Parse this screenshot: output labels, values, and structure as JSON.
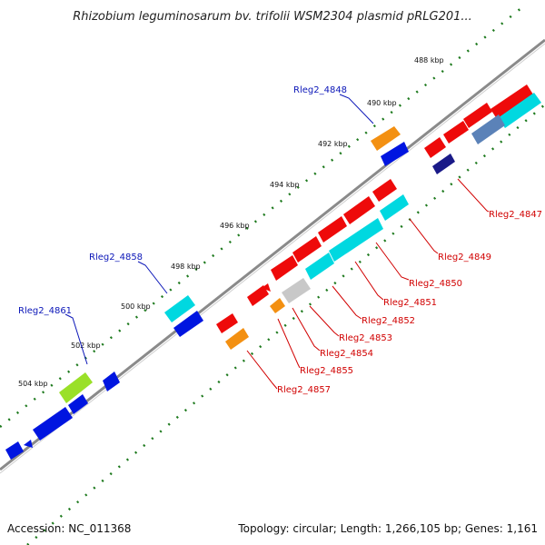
{
  "title": "Rhizobium leguminosarum bv. trifolii WSM2304 plasmid pRLG201...",
  "footer": {
    "accession": "Accession: NC_011368",
    "summary": "Topology: circular; Length: 1,266,105 bp; Genes: 1,161"
  },
  "colors": {
    "backbone": "#8a8a8a",
    "tick": "#1e7a1e",
    "blue_label": "#0b16b8",
    "red_label": "#d10000",
    "callout_blue": "#0b16b8",
    "callout_red": "#d10000"
  },
  "ticks": [
    {
      "label": "488 kbp"
    },
    {
      "label": "490 kbp"
    },
    {
      "label": "492 kbp"
    },
    {
      "label": "494 kbp"
    },
    {
      "label": "496 kbp"
    },
    {
      "label": "498 kbp"
    },
    {
      "label": "500 kbp"
    },
    {
      "label": "502 kbp"
    },
    {
      "label": "504 kbp"
    }
  ],
  "labels_forward": [
    {
      "name": "Rleg2_4848"
    },
    {
      "name": "Rleg2_4858"
    },
    {
      "name": "Rleg2_4861"
    }
  ],
  "labels_reverse": [
    {
      "name": "Rleg2_4847"
    },
    {
      "name": "Rleg2_4849"
    },
    {
      "name": "Rleg2_4850"
    },
    {
      "name": "Rleg2_4851"
    },
    {
      "name": "Rleg2_4852"
    },
    {
      "name": "Rleg2_4853"
    },
    {
      "name": "Rleg2_4854"
    },
    {
      "name": "Rleg2_4855"
    },
    {
      "name": "Rleg2_4857"
    }
  ],
  "feature_colors": [
    "red",
    "cyan",
    "blue",
    "orange",
    "lime",
    "gray",
    "navy",
    "steelblue"
  ]
}
